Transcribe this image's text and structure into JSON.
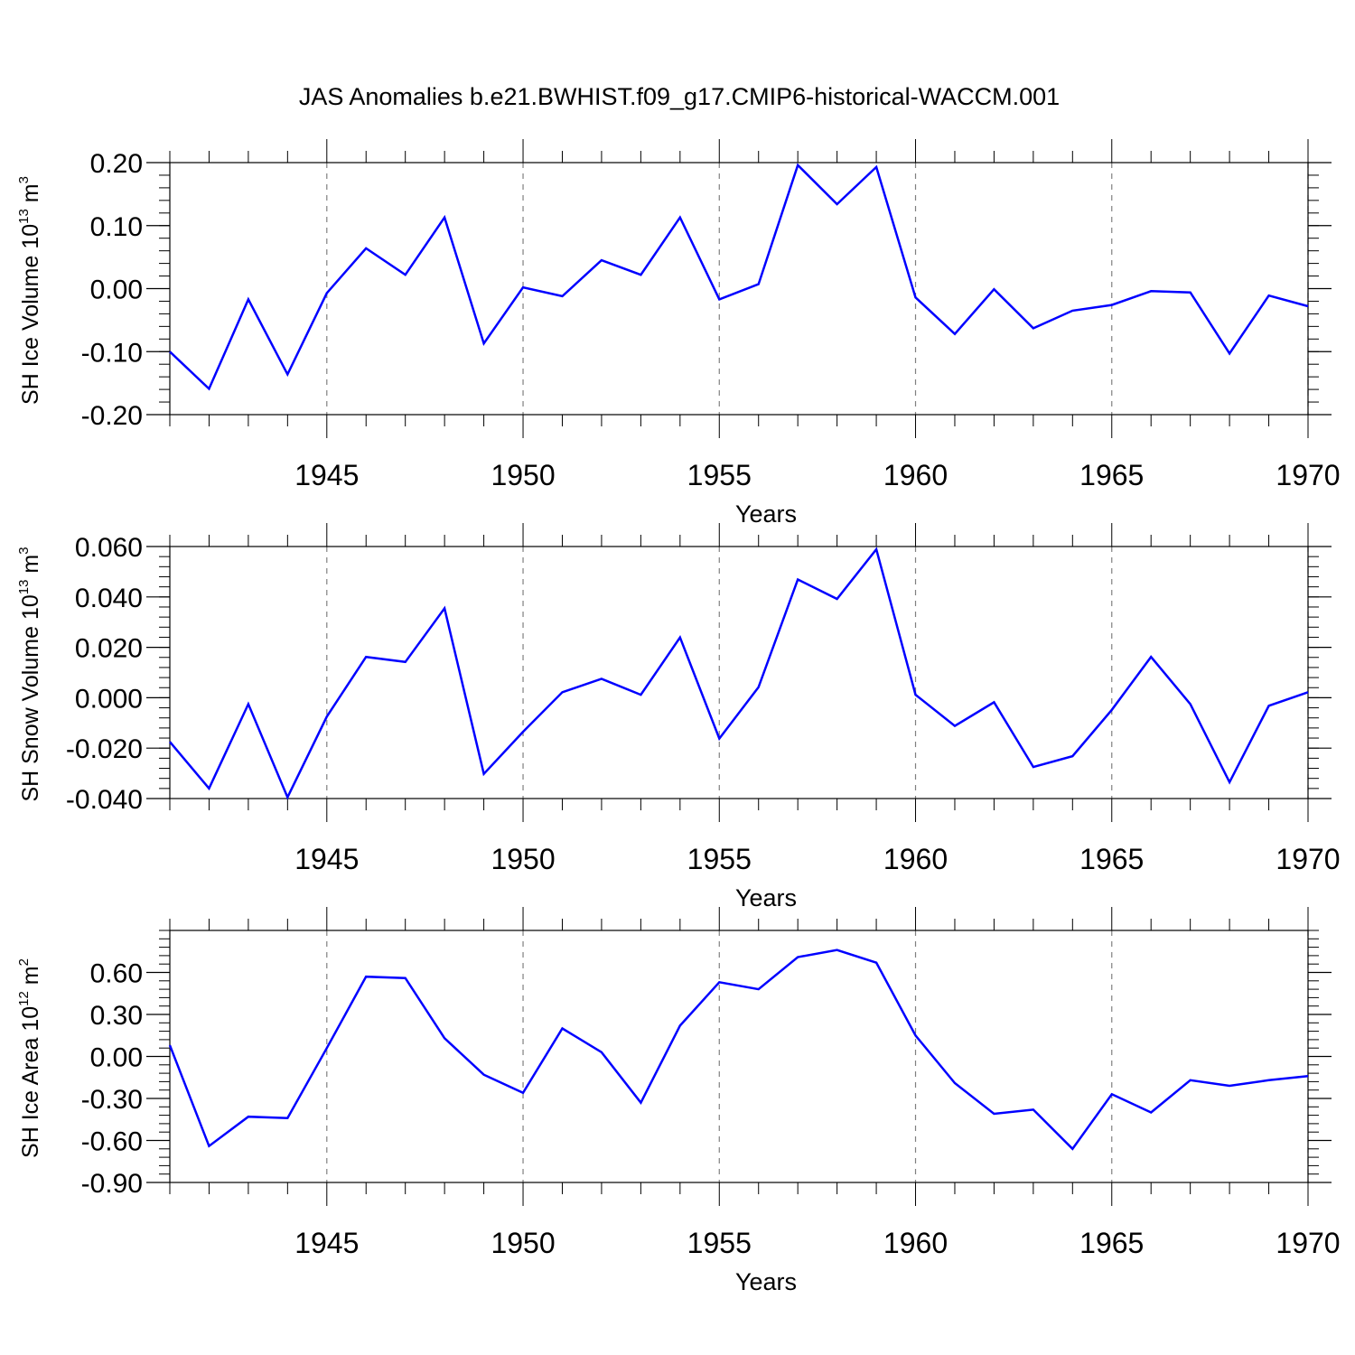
{
  "title": "JAS Anomalies b.e21.BWHIST.f09_g17.CMIP6-historical-WACCM.001",
  "colors": {
    "series": "#0000ff",
    "axes": "#000000",
    "grid": "#808080"
  },
  "chart_data": [
    {
      "type": "line",
      "ylabel": {
        "base": "SH Ice Volume 10",
        "exp": "13",
        "unit": " m",
        "unit_exp": "3"
      },
      "xlabel": "Years",
      "xlim": [
        1941,
        1970
      ],
      "ylim": [
        -0.2,
        0.2
      ],
      "x_ticks": [
        "1945",
        "1950",
        "1955",
        "1960",
        "1965",
        "1970"
      ],
      "y_ticks": [
        "-0.20",
        "-0.10",
        "0.00",
        "0.10",
        "0.20"
      ],
      "grid": "vertical dashed at major x ticks",
      "series": [
        {
          "x": [
            1941,
            1942,
            1943,
            1944,
            1945,
            1946,
            1947,
            1948,
            1949,
            1950,
            1951,
            1952,
            1953,
            1954,
            1955,
            1956,
            1957,
            1958,
            1959,
            1960,
            1961,
            1962,
            1963,
            1964,
            1965,
            1966,
            1967,
            1968,
            1969,
            1970
          ],
          "values": [
            -0.1,
            -0.159,
            -0.017,
            -0.136,
            -0.007,
            0.064,
            0.022,
            0.113,
            -0.087,
            0.002,
            -0.012,
            0.045,
            0.022,
            0.113,
            -0.017,
            0.007,
            0.196,
            0.134,
            0.193,
            -0.014,
            -0.072,
            -0.001,
            -0.063,
            -0.035,
            -0.026,
            -0.004,
            -0.006,
            -0.103,
            -0.011,
            -0.028
          ]
        }
      ]
    },
    {
      "type": "line",
      "ylabel": {
        "base": "SH Snow Volume 10",
        "exp": "13",
        "unit": " m",
        "unit_exp": "3"
      },
      "xlabel": "Years",
      "xlim": [
        1941,
        1970
      ],
      "ylim": [
        -0.04,
        0.06
      ],
      "x_ticks": [
        "1945",
        "1950",
        "1955",
        "1960",
        "1965",
        "1970"
      ],
      "y_ticks": [
        "-0.040",
        "-0.020",
        "0.000",
        "0.020",
        "0.040",
        "0.060"
      ],
      "grid": "vertical dashed at major x ticks",
      "series": [
        {
          "x": [
            1941,
            1942,
            1943,
            1944,
            1945,
            1946,
            1947,
            1948,
            1949,
            1950,
            1951,
            1952,
            1953,
            1954,
            1955,
            1956,
            1957,
            1958,
            1959,
            1960,
            1961,
            1962,
            1963,
            1964,
            1965,
            1966,
            1967,
            1968,
            1969,
            1970
          ],
          "values": [
            -0.0175,
            -0.036,
            -0.0025,
            -0.0395,
            -0.0075,
            0.0162,
            0.0142,
            0.0355,
            -0.0302,
            -0.0135,
            0.0022,
            0.0075,
            0.0012,
            0.0239,
            -0.0162,
            0.0042,
            0.0469,
            0.0392,
            0.0589,
            0.0012,
            -0.0112,
            -0.0018,
            -0.0275,
            -0.0232,
            -0.0048,
            0.0162,
            -0.0025,
            -0.0335,
            -0.0032,
            0.0022
          ]
        }
      ]
    },
    {
      "type": "line",
      "ylabel": {
        "base": "SH Ice Area 10",
        "exp": "12",
        "unit": " m",
        "unit_exp": "2"
      },
      "xlabel": "Years",
      "xlim": [
        1941,
        1970
      ],
      "ylim": [
        -0.9,
        0.9
      ],
      "x_ticks": [
        "1945",
        "1950",
        "1955",
        "1960",
        "1965",
        "1970"
      ],
      "y_ticks": [
        "-0.90",
        "-0.60",
        "-0.30",
        "0.00",
        "0.30",
        "0.60"
      ],
      "grid": "vertical dashed at major x ticks",
      "series": [
        {
          "x": [
            1941,
            1942,
            1943,
            1944,
            1945,
            1946,
            1947,
            1948,
            1949,
            1950,
            1951,
            1952,
            1953,
            1954,
            1955,
            1956,
            1957,
            1958,
            1959,
            1960,
            1961,
            1962,
            1963,
            1964,
            1965,
            1966,
            1967,
            1968,
            1969,
            1970
          ],
          "values": [
            0.08,
            -0.64,
            -0.43,
            -0.44,
            0.06,
            0.57,
            0.56,
            0.13,
            -0.13,
            -0.26,
            0.2,
            0.03,
            -0.33,
            0.22,
            0.53,
            0.48,
            0.71,
            0.76,
            0.67,
            0.15,
            -0.19,
            -0.41,
            -0.38,
            -0.66,
            -0.27,
            -0.4,
            -0.17,
            -0.21,
            -0.17,
            -0.14
          ]
        }
      ]
    }
  ]
}
